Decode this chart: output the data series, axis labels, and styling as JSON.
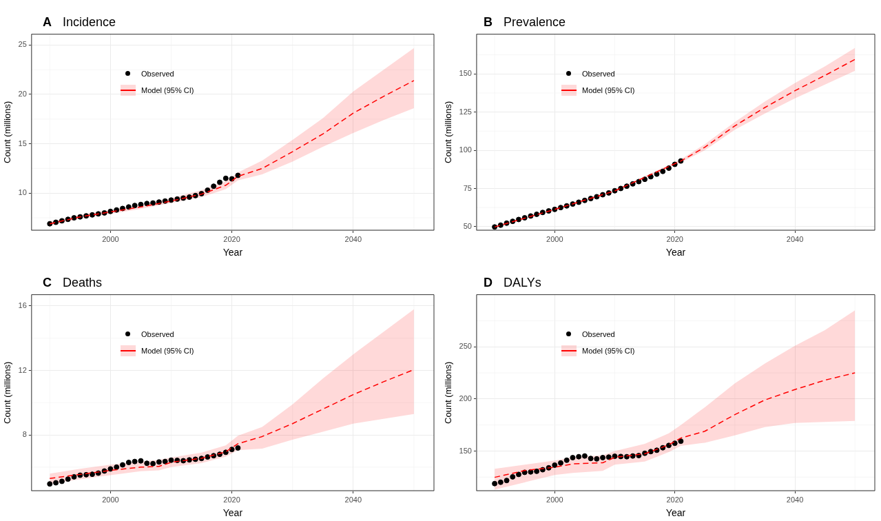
{
  "chart_data": [
    {
      "type": "line",
      "title": "Incidence",
      "annotations": [
        "A"
      ],
      "xlabel": "Year",
      "ylabel": "Count (millions)",
      "xlim": [
        1987,
        2053.3
      ],
      "xticks": [
        2000,
        2020,
        2040
      ],
      "ylim": [
        6.25,
        26.1
      ],
      "yticks": [
        10,
        15,
        20,
        25
      ],
      "grid": true,
      "legend": "top left",
      "series": [
        {
          "name": "Observed",
          "type": "scatter",
          "marker": "circle",
          "color": "#000000",
          "x": [
            1990,
            1991,
            1992,
            1993,
            1994,
            1995,
            1996,
            1997,
            1998,
            1999,
            2000,
            2001,
            2002,
            2003,
            2004,
            2005,
            2006,
            2007,
            2008,
            2009,
            2010,
            2011,
            2012,
            2013,
            2014,
            2015,
            2016,
            2017,
            2018,
            2019,
            2020,
            2021
          ],
          "values": [
            6.9,
            7.05,
            7.2,
            7.35,
            7.5,
            7.6,
            7.7,
            7.8,
            7.9,
            8.0,
            8.15,
            8.3,
            8.45,
            8.6,
            8.75,
            8.85,
            8.95,
            9.0,
            9.1,
            9.2,
            9.3,
            9.4,
            9.5,
            9.6,
            9.75,
            9.95,
            10.3,
            10.7,
            11.1,
            11.5,
            11.45,
            11.8
          ]
        },
        {
          "name": "Model (95% CI)",
          "line_style": "dashed",
          "color": "#ff0000",
          "x": [
            1990,
            1995,
            2000,
            2005,
            2010,
            2015,
            2019,
            2021,
            2025,
            2030,
            2035,
            2040,
            2045,
            2050
          ],
          "values": [
            6.9,
            7.6,
            8.1,
            8.6,
            9.2,
            9.9,
            10.8,
            11.7,
            12.5,
            14.2,
            16.0,
            18.1,
            19.8,
            21.4
          ],
          "lower": [
            6.7,
            7.4,
            7.9,
            8.4,
            9.0,
            9.6,
            10.4,
            11.3,
            11.9,
            13.2,
            14.7,
            16.1,
            17.4,
            18.6
          ],
          "upper": [
            7.1,
            7.8,
            8.3,
            8.8,
            9.5,
            10.3,
            11.2,
            12.1,
            13.3,
            15.4,
            17.6,
            20.3,
            22.5,
            24.7
          ]
        }
      ]
    },
    {
      "type": "line",
      "title": "Prevalence",
      "annotations": [
        "B"
      ],
      "xlabel": "Year",
      "ylabel": "Count (millions)",
      "xlim": [
        1987,
        2053.3
      ],
      "xticks": [
        2000,
        2020,
        2040
      ],
      "ylim": [
        47.7,
        176
      ],
      "yticks": [
        50,
        75,
        100,
        125,
        150
      ],
      "grid": true,
      "legend": "top left",
      "series": [
        {
          "name": "Observed",
          "type": "scatter",
          "marker": "circle",
          "color": "#000000",
          "x": [
            1990,
            1991,
            1992,
            1993,
            1994,
            1995,
            1996,
            1997,
            1998,
            1999,
            2000,
            2001,
            2002,
            2003,
            2004,
            2005,
            2006,
            2007,
            2008,
            2009,
            2010,
            2011,
            2012,
            2013,
            2014,
            2015,
            2016,
            2017,
            2018,
            2019,
            2020,
            2021
          ],
          "values": [
            49.8,
            51.0,
            52.3,
            53.5,
            54.7,
            55.8,
            57.0,
            58.1,
            59.3,
            60.3,
            61.3,
            62.5,
            63.6,
            64.8,
            66.0,
            67.2,
            68.4,
            69.6,
            70.9,
            72.1,
            73.5,
            75.0,
            76.5,
            78.0,
            79.5,
            81.0,
            82.7,
            84.4,
            86.2,
            88.3,
            90.8,
            93.0
          ]
        },
        {
          "name": "Model (95% CI)",
          "line_style": "dashed",
          "color": "#ff0000",
          "x": [
            1990,
            2000,
            2010,
            2021,
            2025,
            2030,
            2035,
            2040,
            2045,
            2050
          ],
          "values": [
            49.8,
            61.3,
            73.4,
            93.0,
            102,
            116,
            128,
            139,
            149,
            159.5
          ],
          "lower": [
            49.3,
            60.8,
            72.9,
            92.0,
            100,
            113.5,
            124,
            134,
            143,
            152
          ],
          "upper": [
            50.3,
            61.8,
            73.9,
            94.0,
            104,
            118.5,
            132,
            144,
            155,
            167
          ]
        }
      ]
    },
    {
      "type": "line",
      "title": "Deaths",
      "annotations": [
        "C"
      ],
      "xlabel": "Year",
      "ylabel": "Count (millions)",
      "xlim": [
        1987,
        2053.3
      ],
      "xticks": [
        2000,
        2020,
        2040
      ],
      "ylim": [
        4.54,
        16.7
      ],
      "yticks": [
        8,
        12,
        16
      ],
      "grid": true,
      "legend": "top left",
      "series": [
        {
          "name": "Observed",
          "type": "scatter",
          "marker": "circle",
          "color": "#000000",
          "x": [
            1990,
            1991,
            1992,
            1993,
            1994,
            1995,
            1996,
            1997,
            1998,
            1999,
            2000,
            2001,
            2002,
            2003,
            2004,
            2005,
            2006,
            2007,
            2008,
            2009,
            2010,
            2011,
            2012,
            2013,
            2014,
            2015,
            2016,
            2017,
            2018,
            2019,
            2020,
            2021
          ],
          "values": [
            4.96,
            5.03,
            5.12,
            5.26,
            5.4,
            5.5,
            5.53,
            5.56,
            5.63,
            5.76,
            5.89,
            6.0,
            6.14,
            6.29,
            6.35,
            6.39,
            6.24,
            6.22,
            6.32,
            6.35,
            6.43,
            6.42,
            6.4,
            6.45,
            6.49,
            6.54,
            6.63,
            6.71,
            6.8,
            6.92,
            7.1,
            7.19
          ]
        },
        {
          "name": "Model (95% CI)",
          "line_style": "dashed",
          "color": "#ff0000",
          "x": [
            1990,
            1995,
            2000,
            2005,
            2008,
            2010,
            2015,
            2019,
            2021,
            2025,
            2030,
            2035,
            2040,
            2045,
            2050
          ],
          "values": [
            5.3,
            5.55,
            5.8,
            6.0,
            6.05,
            6.3,
            6.55,
            6.95,
            7.45,
            7.9,
            8.7,
            9.6,
            10.5,
            11.3,
            12.05
          ],
          "lower": [
            4.95,
            5.25,
            5.5,
            5.75,
            5.8,
            6.0,
            6.25,
            6.65,
            7.05,
            7.15,
            7.7,
            8.2,
            8.7,
            9.0,
            9.3
          ],
          "upper": [
            5.6,
            5.9,
            6.15,
            6.35,
            6.45,
            6.6,
            6.9,
            7.35,
            7.95,
            8.5,
            9.9,
            11.5,
            13.0,
            14.4,
            15.8
          ]
        }
      ]
    },
    {
      "type": "line",
      "title": "DALYs",
      "annotations": [
        "D"
      ],
      "xlabel": "Year",
      "ylabel": "Count (millions)",
      "xlim": [
        1987,
        2053.3
      ],
      "xticks": [
        2000,
        2020,
        2040
      ],
      "ylim": [
        112,
        300
      ],
      "yticks": [
        150,
        200,
        250
      ],
      "grid": true,
      "legend": "top left",
      "series": [
        {
          "name": "Observed",
          "type": "scatter",
          "marker": "circle",
          "color": "#000000",
          "x": [
            1990,
            1991,
            1992,
            1993,
            1994,
            1995,
            1996,
            1997,
            1998,
            1999,
            2000,
            2001,
            2002,
            2003,
            2004,
            2005,
            2006,
            2007,
            2008,
            2009,
            2010,
            2011,
            2012,
            2013,
            2014,
            2015,
            2016,
            2017,
            2018,
            2019,
            2020,
            2021
          ],
          "values": [
            118.8,
            120.1,
            121.8,
            125.3,
            127.6,
            129.6,
            130,
            130.6,
            132.1,
            133.9,
            136.5,
            138.6,
            141.2,
            143.7,
            144.6,
            145.3,
            142.9,
            142.5,
            143.7,
            144.2,
            145,
            144.8,
            144.6,
            145.3,
            145.7,
            147.9,
            149.5,
            150.8,
            153.2,
            155.4,
            157.5,
            159.5
          ]
        },
        {
          "name": "Model (95% CI)",
          "line_style": "dashed",
          "color": "#ff0000",
          "x": [
            1990,
            1995,
            2000,
            2003,
            2008,
            2010,
            2015,
            2019,
            2021,
            2025,
            2030,
            2035,
            2040,
            2045,
            2050
          ],
          "values": [
            124.8,
            131.3,
            134.5,
            137.7,
            138.8,
            144,
            147.4,
            156,
            162.5,
            169,
            185,
            199,
            209,
            218,
            225
          ],
          "lower": [
            113,
            120,
            127,
            129,
            131,
            137,
            140,
            149,
            155,
            158,
            165,
            173,
            177,
            178,
            179
          ],
          "upper": [
            133,
            137,
            141,
            144,
            146,
            150,
            157,
            167,
            175,
            192,
            215,
            234,
            251,
            266,
            285
          ]
        }
      ]
    }
  ]
}
